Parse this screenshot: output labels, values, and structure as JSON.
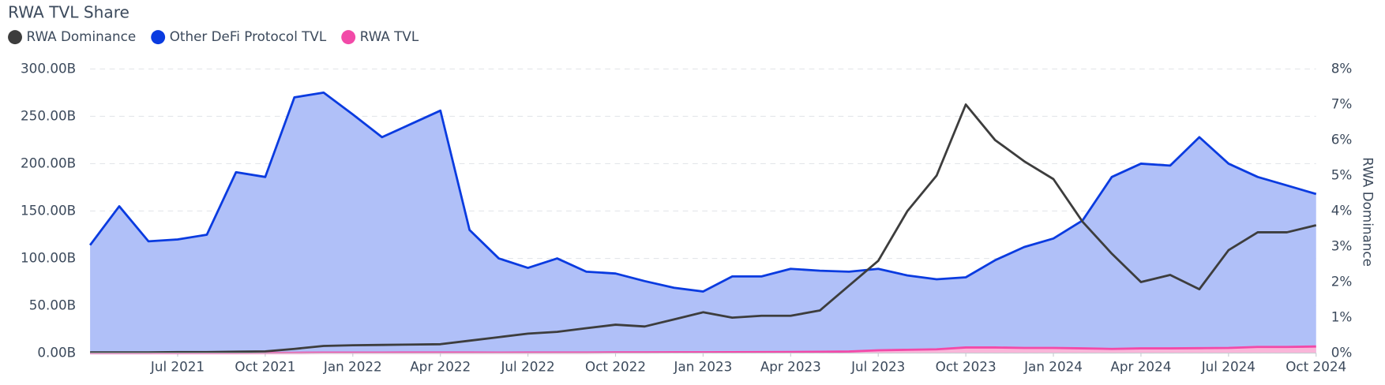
{
  "chart_data": {
    "type": "area",
    "title": "RWA TVL Share",
    "y2_label": "RWA Dominance",
    "x": [
      "2021-04",
      "2021-05",
      "2021-06",
      "2021-07",
      "2021-08",
      "2021-09",
      "2021-10",
      "2021-11",
      "2021-12",
      "2022-01",
      "2022-02",
      "2022-03",
      "2022-04",
      "2022-05",
      "2022-06",
      "2022-07",
      "2022-08",
      "2022-09",
      "2022-10",
      "2022-11",
      "2022-12",
      "2023-01",
      "2023-02",
      "2023-03",
      "2023-04",
      "2023-05",
      "2023-06",
      "2023-07",
      "2023-08",
      "2023-09",
      "2023-10",
      "2023-11",
      "2023-12",
      "2024-01",
      "2024-02",
      "2024-03",
      "2024-04",
      "2024-05",
      "2024-06",
      "2024-07",
      "2024-08",
      "2024-09",
      "2024-10"
    ],
    "xlim": [
      "2021-04",
      "2024-10"
    ],
    "xticks": [
      {
        "value": "2021-07",
        "label": "Jul 2021"
      },
      {
        "value": "2021-10",
        "label": "Oct 2021"
      },
      {
        "value": "2022-01",
        "label": "Jan 2022"
      },
      {
        "value": "2022-04",
        "label": "Apr 2022"
      },
      {
        "value": "2022-07",
        "label": "Jul 2022"
      },
      {
        "value": "2022-10",
        "label": "Oct 2022"
      },
      {
        "value": "2023-01",
        "label": "Jan 2023"
      },
      {
        "value": "2023-04",
        "label": "Apr 2023"
      },
      {
        "value": "2023-07",
        "label": "Jul 2023"
      },
      {
        "value": "2023-10",
        "label": "Oct 2023"
      },
      {
        "value": "2024-01",
        "label": "Jan 2024"
      },
      {
        "value": "2024-04",
        "label": "Apr 2024"
      },
      {
        "value": "2024-07",
        "label": "Jul 2024"
      },
      {
        "value": "2024-10",
        "label": "Oct 2024"
      }
    ],
    "ylim": [
      0,
      300
    ],
    "yticks": [
      {
        "value": 0,
        "label": "0.00B"
      },
      {
        "value": 50,
        "label": "50.00B"
      },
      {
        "value": 100,
        "label": "100.00B"
      },
      {
        "value": 150,
        "label": "150.00B"
      },
      {
        "value": 200,
        "label": "200.00B"
      },
      {
        "value": 250,
        "label": "250.00B"
      },
      {
        "value": 300,
        "label": "300.00B"
      }
    ],
    "y2lim": [
      0,
      8
    ],
    "y2ticks": [
      {
        "value": 0,
        "label": "0%"
      },
      {
        "value": 1,
        "label": "1%"
      },
      {
        "value": 2,
        "label": "2%"
      },
      {
        "value": 3,
        "label": "3%"
      },
      {
        "value": 4,
        "label": "4%"
      },
      {
        "value": 5,
        "label": "5%"
      },
      {
        "value": 6,
        "label": "6%"
      },
      {
        "value": 7,
        "label": "7%"
      },
      {
        "value": 8,
        "label": "8%"
      }
    ],
    "grid": true,
    "series": [
      {
        "name": "RWA Dominance",
        "color": "#3d3d3d",
        "axis": "y2",
        "fill": false,
        "values": [
          0.02,
          0.02,
          0.02,
          0.03,
          0.03,
          0.04,
          0.05,
          0.12,
          0.2,
          0.22,
          0.23,
          0.24,
          0.25,
          0.35,
          0.45,
          0.55,
          0.6,
          0.7,
          0.8,
          0.75,
          0.95,
          1.15,
          1.0,
          1.05,
          1.05,
          1.2,
          1.9,
          2.6,
          4.0,
          5.0,
          7.0,
          6.0,
          5.4,
          4.9,
          3.7,
          2.8,
          2.0,
          2.2,
          1.8,
          2.9,
          3.4,
          3.4,
          3.6
        ]
      },
      {
        "name": "Other DeFi Protocol TVL",
        "color": "#0a3be0",
        "fill_color": "#b0c0f8",
        "axis": "y",
        "fill": true,
        "values": [
          114,
          155,
          118,
          120,
          125,
          191,
          186,
          270,
          275,
          252,
          228,
          242,
          256,
          130,
          100,
          90,
          100,
          86,
          84,
          76,
          69,
          65,
          81,
          81,
          89,
          87,
          86,
          89,
          82,
          78,
          80,
          98,
          112,
          121,
          140,
          186,
          200,
          198,
          228,
          200,
          186,
          177,
          168
        ]
      },
      {
        "name": "RWA TVL",
        "color": "#f24aa8",
        "fill_color": "#f9b6d9",
        "axis": "y",
        "fill": true,
        "values": [
          0.1,
          0.1,
          0.1,
          0.1,
          0.1,
          0.1,
          0.2,
          0.3,
          0.5,
          0.5,
          0.5,
          0.6,
          0.6,
          0.6,
          0.5,
          0.6,
          0.6,
          0.6,
          0.7,
          0.7,
          0.8,
          0.9,
          1.0,
          1.1,
          1.2,
          1.4,
          1.8,
          3.0,
          3.5,
          4.0,
          6.0,
          6.0,
          5.5,
          5.5,
          5.0,
          4.5,
          5.0,
          5.0,
          5.2,
          5.5,
          6.5,
          6.5,
          7.0
        ]
      }
    ]
  }
}
